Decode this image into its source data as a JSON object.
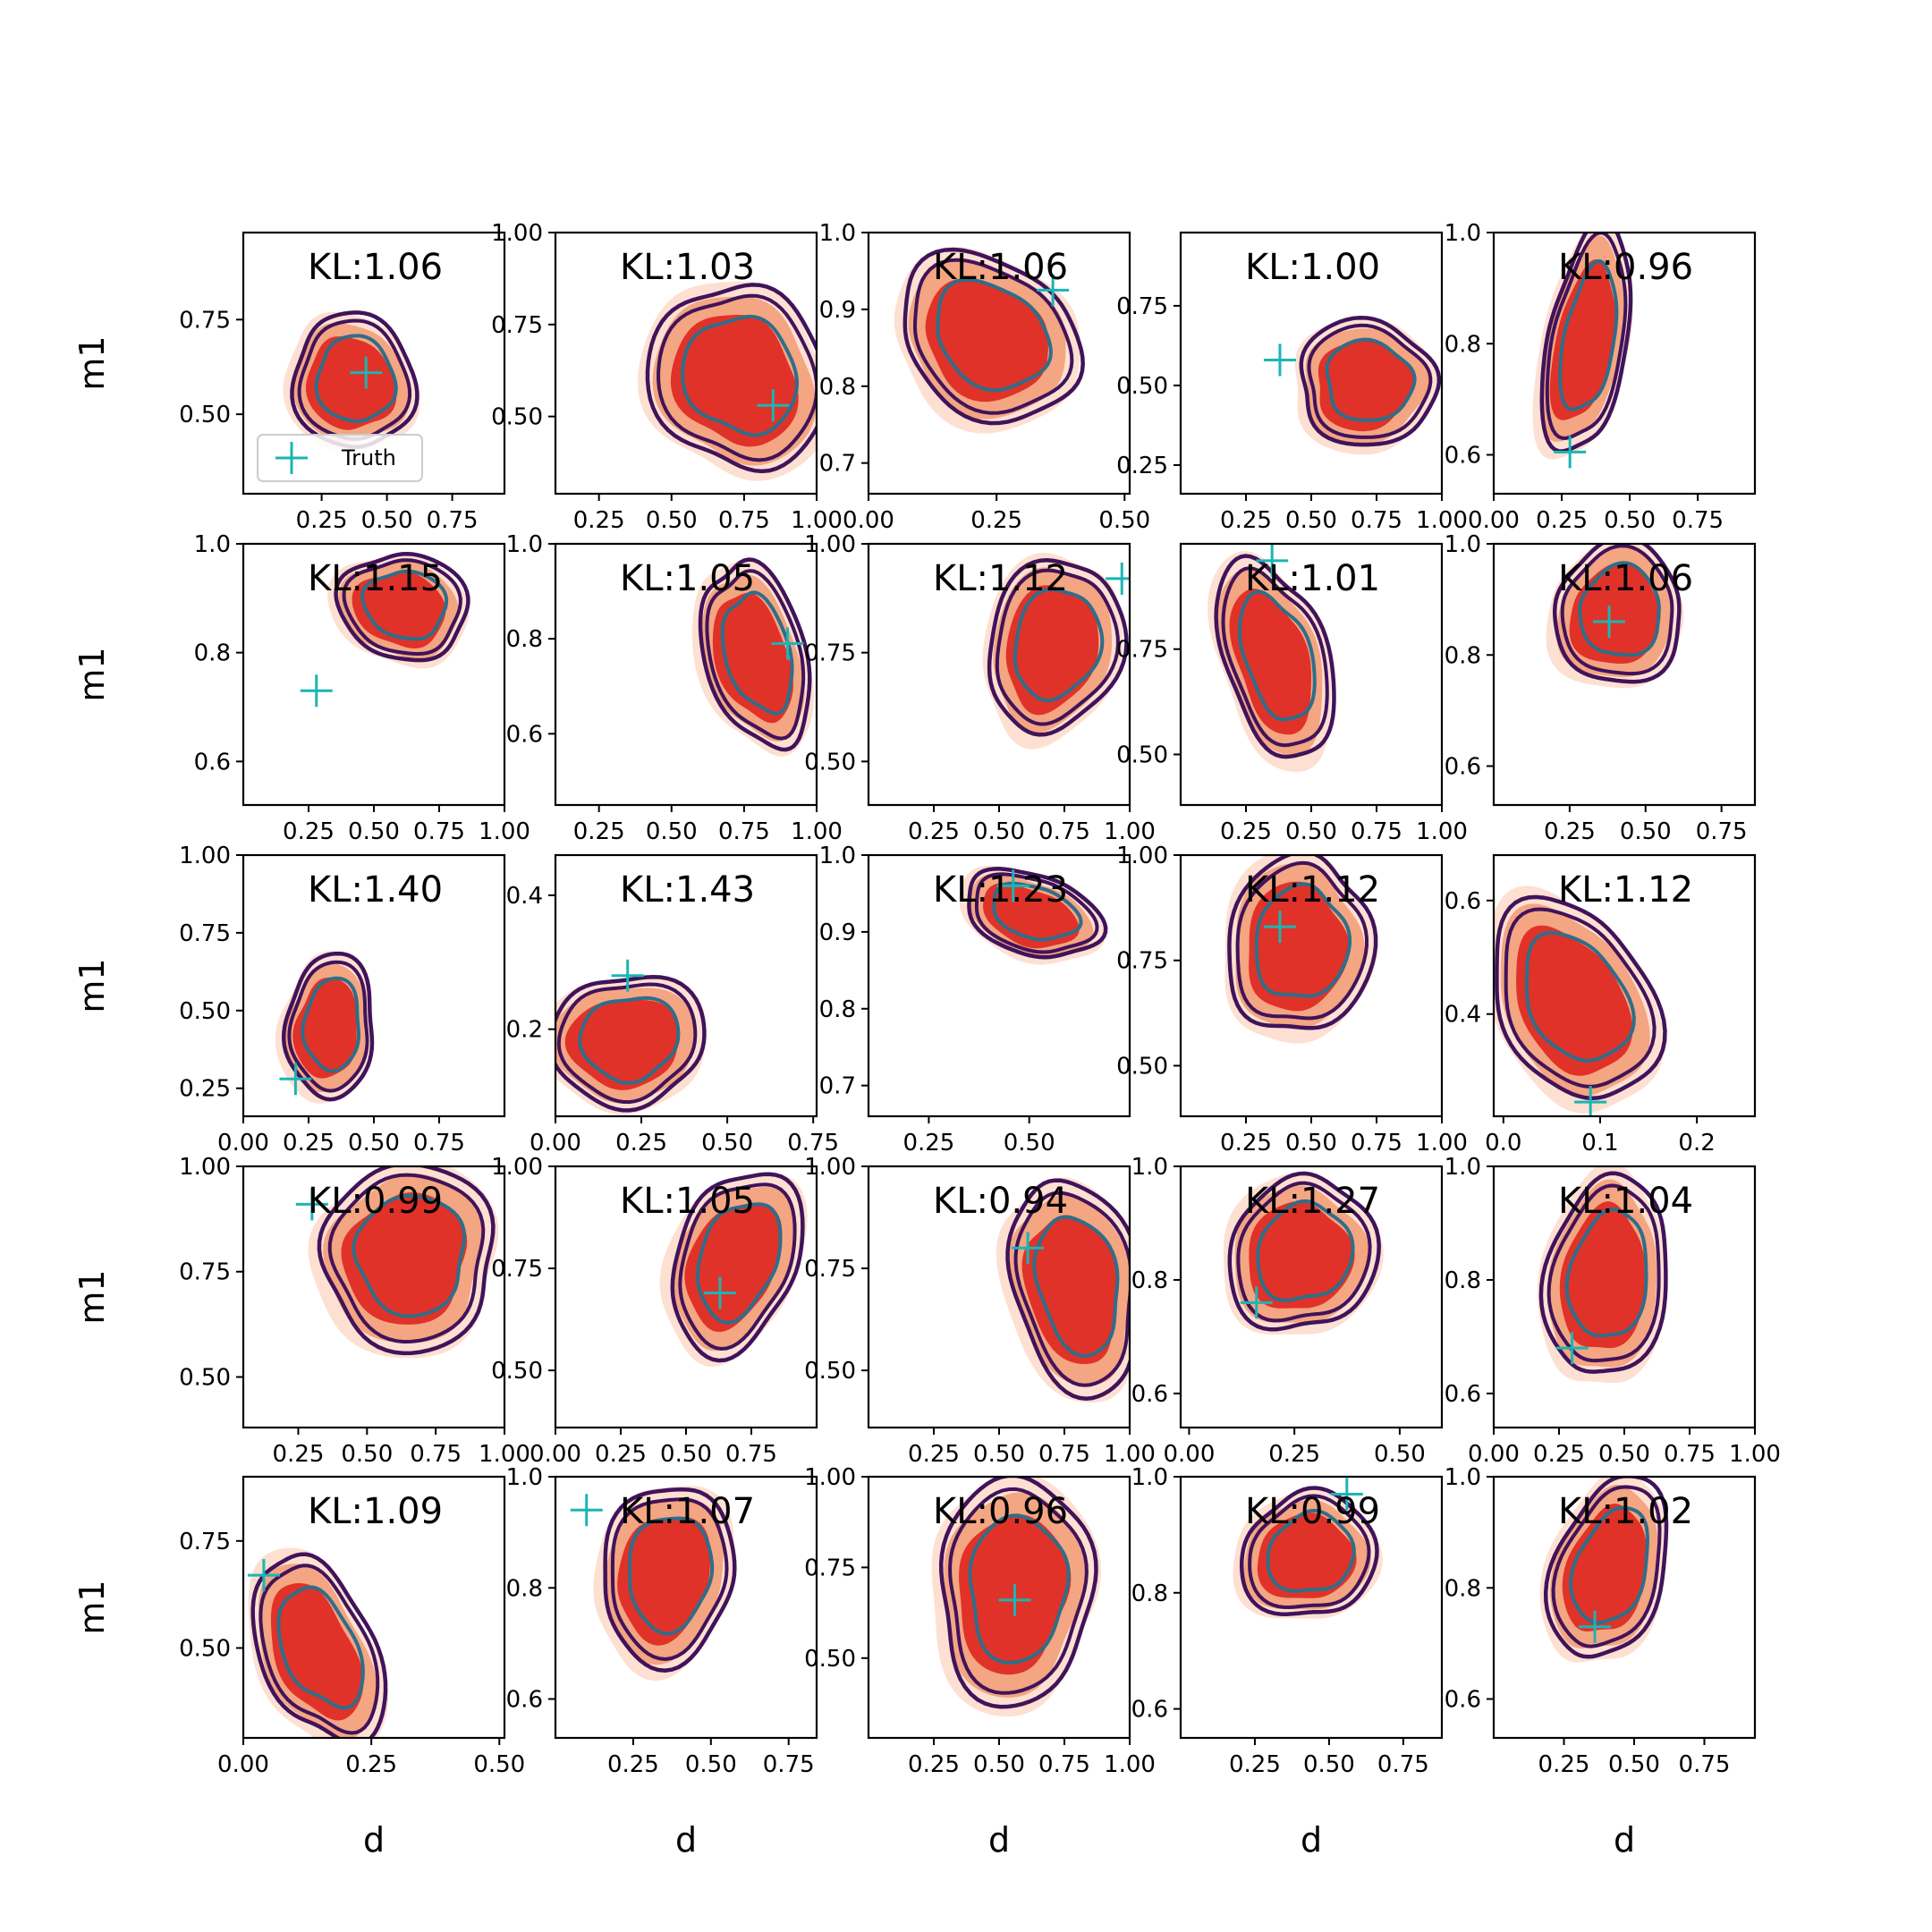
{
  "figure": {
    "x_label": "d",
    "y_label": "m1",
    "legend": {
      "label": "Truth",
      "placement": "lower-left",
      "panel": 0
    },
    "colors": {
      "fill_outer": "#fde0d2",
      "fill_mid": "#f4a582",
      "fill_inner": "#e03228",
      "contour_outer": "#40135a",
      "contour_inner": "#2e6e8a",
      "truth": "#1ab5b5",
      "frame": "#000000"
    },
    "contour_levels": [
      "outer",
      "middle",
      "inner"
    ],
    "grid": false
  },
  "chart_data": [
    {
      "type": "contour",
      "kl": "KL:1.06",
      "truth": [
        0.42,
        0.61
      ],
      "center": [
        0.36,
        0.58
      ],
      "spread": [
        0.2,
        0.17
      ],
      "tilt": -0.6,
      "xlim": [
        -0.05,
        0.95
      ],
      "ylim": [
        0.29,
        0.98
      ],
      "xticks": [
        "0.25",
        "0.50",
        "0.75"
      ],
      "xtick_values": [
        0.25,
        0.5,
        0.75
      ],
      "yticks": [
        "0.50",
        "0.75"
      ],
      "ytick_values": [
        0.5,
        0.75
      ]
    },
    {
      "type": "contour",
      "kl": "KL:1.03",
      "truth": [
        0.85,
        0.53
      ],
      "center": [
        0.72,
        0.6
      ],
      "spread": [
        0.26,
        0.24
      ],
      "tilt": -0.4,
      "xlim": [
        0.1,
        1.0
      ],
      "ylim": [
        0.29,
        1.0
      ],
      "xticks": [
        "0.25",
        "0.50",
        "0.75",
        "1.00"
      ],
      "xtick_values": [
        0.25,
        0.5,
        0.75,
        1.0
      ],
      "yticks": [
        "0.50",
        "0.75",
        "1.00"
      ],
      "ytick_values": [
        0.5,
        0.75,
        1.0
      ]
    },
    {
      "type": "contour",
      "kl": "KL:1.06",
      "truth": [
        0.36,
        0.925
      ],
      "center": [
        0.23,
        0.86
      ],
      "spread": [
        0.17,
        0.09
      ],
      "tilt": 0.7,
      "xlim": [
        0.0,
        0.51
      ],
      "ylim": [
        0.66,
        1.0
      ],
      "xticks": [
        "0.00",
        "0.25",
        "0.50"
      ],
      "xtick_values": [
        0.0,
        0.25,
        0.5
      ],
      "yticks": [
        "0.7",
        "0.8",
        "0.9",
        "1.0"
      ],
      "ytick_values": [
        0.7,
        0.8,
        0.9,
        1.0
      ]
    },
    {
      "type": "contour",
      "kl": "KL:1.00",
      "truth": [
        0.38,
        0.58
      ],
      "center": [
        0.7,
        0.5
      ],
      "spread": [
        0.25,
        0.17
      ],
      "tilt": 0.0,
      "xlim": [
        0.0,
        1.0
      ],
      "ylim": [
        0.16,
        0.98
      ],
      "xticks": [
        "0.25",
        "0.50",
        "0.75",
        "1.00"
      ],
      "xtick_values": [
        0.25,
        0.5,
        0.75,
        1.0
      ],
      "yticks": [
        "0.25",
        "0.50",
        "0.75"
      ],
      "ytick_values": [
        0.25,
        0.5,
        0.75
      ]
    },
    {
      "type": "contour",
      "kl": "KL:0.96",
      "truth": [
        0.28,
        0.605
      ],
      "center": [
        0.33,
        0.8
      ],
      "spread": [
        0.14,
        0.18
      ],
      "tilt": 0.25,
      "xlim": [
        0.0,
        0.96
      ],
      "ylim": [
        0.53,
        1.0
      ],
      "xticks": [
        "0.00",
        "0.25",
        "0.50",
        "0.75"
      ],
      "xtick_values": [
        0.0,
        0.25,
        0.5,
        0.75
      ],
      "yticks": [
        "0.6",
        "0.8",
        "1.0"
      ],
      "ytick_values": [
        0.6,
        0.8,
        1.0
      ]
    },
    {
      "type": "contour",
      "kl": "KL:1.15",
      "truth": [
        0.28,
        0.73
      ],
      "center": [
        0.6,
        0.88
      ],
      "spread": [
        0.22,
        0.09
      ],
      "tilt": 0.8,
      "xlim": [
        0.0,
        1.0
      ],
      "ylim": [
        0.52,
        1.0
      ],
      "xticks": [
        "0.25",
        "0.50",
        "0.75",
        "1.00"
      ],
      "xtick_values": [
        0.25,
        0.5,
        0.75,
        1.0
      ],
      "yticks": [
        "0.6",
        "0.8",
        "1.0"
      ],
      "ytick_values": [
        0.6,
        0.8,
        1.0
      ]
    },
    {
      "type": "contour",
      "kl": "KL:1.05",
      "truth": [
        0.9,
        0.79
      ],
      "center": [
        0.78,
        0.76
      ],
      "spread": [
        0.15,
        0.19
      ],
      "tilt": -0.5,
      "xlim": [
        0.1,
        1.0
      ],
      "ylim": [
        0.45,
        1.0
      ],
      "xticks": [
        "0.25",
        "0.50",
        "0.75",
        "1.00"
      ],
      "xtick_values": [
        0.25,
        0.5,
        0.75,
        1.0
      ],
      "yticks": [
        "0.6",
        "0.8",
        "1.0"
      ],
      "ytick_values": [
        0.6,
        0.8,
        1.0
      ]
    },
    {
      "type": "contour",
      "kl": "KL:1.12",
      "truth": [
        0.97,
        0.92
      ],
      "center": [
        0.7,
        0.76
      ],
      "spread": [
        0.22,
        0.19
      ],
      "tilt": 0.6,
      "xlim": [
        0.0,
        1.0
      ],
      "ylim": [
        0.4,
        1.0
      ],
      "xticks": [
        "0.25",
        "0.50",
        "0.75",
        "1.00"
      ],
      "xtick_values": [
        0.25,
        0.5,
        0.75,
        1.0
      ],
      "yticks": [
        "0.50",
        "0.75",
        "1.00"
      ],
      "ytick_values": [
        0.5,
        0.75,
        1.0
      ]
    },
    {
      "type": "contour",
      "kl": "KL:1.01",
      "truth": [
        0.35,
        0.96
      ],
      "center": [
        0.35,
        0.72
      ],
      "spread": [
        0.18,
        0.22
      ],
      "tilt": -0.4,
      "xlim": [
        0.0,
        1.0
      ],
      "ylim": [
        0.38,
        1.0
      ],
      "xticks": [
        "0.25",
        "0.50",
        "0.75",
        "1.00"
      ],
      "xtick_values": [
        0.25,
        0.5,
        0.75,
        1.0
      ],
      "yticks": [
        "0.50",
        "0.75"
      ],
      "ytick_values": [
        0.5,
        0.75
      ]
    },
    {
      "type": "contour",
      "kl": "KL:1.06",
      "truth": [
        0.38,
        0.86
      ],
      "center": [
        0.4,
        0.87
      ],
      "spread": [
        0.2,
        0.11
      ],
      "tilt": 0.5,
      "xlim": [
        0.0,
        0.86
      ],
      "ylim": [
        0.53,
        1.0
      ],
      "xticks": [
        "0.25",
        "0.50",
        "0.75"
      ],
      "xtick_values": [
        0.25,
        0.5,
        0.75
      ],
      "yticks": [
        "0.6",
        "0.8",
        "1.0"
      ],
      "ytick_values": [
        0.6,
        0.8,
        1.0
      ]
    },
    {
      "type": "contour",
      "kl": "KL:1.40",
      "truth": [
        0.2,
        0.28
      ],
      "center": [
        0.32,
        0.44
      ],
      "spread": [
        0.16,
        0.2
      ],
      "tilt": 0.0,
      "xlim": [
        0.0,
        1.0
      ],
      "ylim": [
        0.16,
        1.0
      ],
      "xticks": [
        "0.00",
        "0.25",
        "0.50",
        "0.75"
      ],
      "xtick_values": [
        0.0,
        0.25,
        0.5,
        0.75
      ],
      "yticks": [
        "0.25",
        "0.50",
        "0.75",
        "1.00"
      ],
      "ytick_values": [
        0.25,
        0.5,
        0.75,
        1.0
      ]
    },
    {
      "type": "contour",
      "kl": "KL:1.43",
      "truth": [
        0.21,
        0.28
      ],
      "center": [
        0.2,
        0.18
      ],
      "spread": [
        0.2,
        0.09
      ],
      "tilt": 0.3,
      "xlim": [
        0.0,
        0.76
      ],
      "ylim": [
        0.07,
        0.46
      ],
      "xticks": [
        "0.00",
        "0.25",
        "0.50",
        "0.75"
      ],
      "xtick_values": [
        0.0,
        0.25,
        0.5,
        0.75
      ],
      "yticks": [
        "0.2",
        "0.4"
      ],
      "ytick_values": [
        0.2,
        0.4
      ]
    },
    {
      "type": "contour",
      "kl": "KL:1.23",
      "truth": [
        0.46,
        0.96
      ],
      "center": [
        0.5,
        0.92
      ],
      "spread": [
        0.15,
        0.05
      ],
      "tilt": 0.6,
      "xlim": [
        0.1,
        0.75
      ],
      "ylim": [
        0.66,
        1.0
      ],
      "xticks": [
        "0.25",
        "0.50"
      ],
      "xtick_values": [
        0.25,
        0.5
      ],
      "yticks": [
        "0.7",
        "0.8",
        "0.9",
        "1.0"
      ],
      "ytick_values": [
        0.7,
        0.8,
        0.9,
        1.0
      ]
    },
    {
      "type": "contour",
      "kl": "KL:1.12",
      "truth": [
        0.38,
        0.83
      ],
      "center": [
        0.44,
        0.78
      ],
      "spread": [
        0.24,
        0.2
      ],
      "tilt": 0.4,
      "xlim": [
        0.0,
        1.0
      ],
      "ylim": [
        0.38,
        1.0
      ],
      "xticks": [
        "0.25",
        "0.50",
        "0.75",
        "1.00"
      ],
      "xtick_values": [
        0.25,
        0.5,
        0.75,
        1.0
      ],
      "yticks": [
        "0.50",
        "0.75",
        "1.00"
      ],
      "ytick_values": [
        0.5,
        0.75,
        1.0
      ]
    },
    {
      "type": "contour",
      "kl": "KL:1.12",
      "truth": [
        0.09,
        0.245
      ],
      "center": [
        0.07,
        0.42
      ],
      "spread": [
        0.07,
        0.17
      ],
      "tilt": -0.6,
      "xlim": [
        -0.01,
        0.26
      ],
      "ylim": [
        0.22,
        0.68
      ],
      "xticks": [
        "0.0",
        "0.1",
        "0.2"
      ],
      "xtick_values": [
        0.0,
        0.1,
        0.2
      ],
      "yticks": [
        "0.4",
        "0.6"
      ],
      "ytick_values": [
        0.4,
        0.6
      ]
    },
    {
      "type": "contour",
      "kl": "KL:0.99",
      "truth": [
        0.3,
        0.91
      ],
      "center": [
        0.64,
        0.78
      ],
      "spread": [
        0.3,
        0.19
      ],
      "tilt": 0.7,
      "xlim": [
        0.05,
        1.0
      ],
      "ylim": [
        0.38,
        1.0
      ],
      "xticks": [
        "0.25",
        "0.50",
        "0.75",
        "1.00"
      ],
      "xtick_values": [
        0.25,
        0.5,
        0.75,
        1.0
      ],
      "yticks": [
        "0.50",
        "0.75",
        "1.00"
      ],
      "ytick_values": [
        0.5,
        0.75,
        1.0
      ]
    },
    {
      "type": "contour",
      "kl": "KL:1.05",
      "truth": [
        0.63,
        0.69
      ],
      "center": [
        0.68,
        0.76
      ],
      "spread": [
        0.22,
        0.2
      ],
      "tilt": 0.5,
      "xlim": [
        0.0,
        1.0
      ],
      "ylim": [
        0.36,
        1.0
      ],
      "xticks": [
        "0.00",
        "0.25",
        "0.50",
        "0.75"
      ],
      "xtick_values": [
        0.0,
        0.25,
        0.5,
        0.75
      ],
      "yticks": [
        "0.50",
        "0.75",
        "1.00"
      ],
      "ytick_values": [
        0.5,
        0.75,
        1.0
      ]
    },
    {
      "type": "contour",
      "kl": "KL:0.94",
      "truth": [
        0.61,
        0.8
      ],
      "center": [
        0.78,
        0.7
      ],
      "spread": [
        0.22,
        0.24
      ],
      "tilt": -0.5,
      "xlim": [
        0.0,
        1.0
      ],
      "ylim": [
        0.36,
        1.0
      ],
      "xticks": [
        "0.25",
        "0.50",
        "0.75",
        "1.00"
      ],
      "xtick_values": [
        0.25,
        0.5,
        0.75,
        1.0
      ],
      "yticks": [
        "0.50",
        "0.75",
        "1.00"
      ],
      "ytick_values": [
        0.5,
        0.75,
        1.0
      ]
    },
    {
      "type": "contour",
      "kl": "KL:1.27",
      "truth": [
        0.16,
        0.76
      ],
      "center": [
        0.26,
        0.84
      ],
      "spread": [
        0.15,
        0.13
      ],
      "tilt": 0.3,
      "xlim": [
        -0.02,
        0.6
      ],
      "ylim": [
        0.54,
        1.0
      ],
      "xticks": [
        "0.00",
        "0.25",
        "0.50"
      ],
      "xtick_values": [
        0.0,
        0.25,
        0.5
      ],
      "yticks": [
        "0.6",
        "0.8",
        "1.0"
      ],
      "ytick_values": [
        0.6,
        0.8,
        1.0
      ]
    },
    {
      "type": "contour",
      "kl": "KL:1.04",
      "truth": [
        0.3,
        0.68
      ],
      "center": [
        0.42,
        0.8
      ],
      "spread": [
        0.2,
        0.17
      ],
      "tilt": 0.3,
      "xlim": [
        0.0,
        1.0
      ],
      "ylim": [
        0.54,
        1.0
      ],
      "xticks": [
        "0.00",
        "0.25",
        "0.50",
        "0.75",
        "1.00"
      ],
      "xtick_values": [
        0.0,
        0.25,
        0.5,
        0.75,
        1.0
      ],
      "yticks": [
        "0.6",
        "0.8",
        "1.0"
      ],
      "ytick_values": [
        0.6,
        0.8,
        1.0
      ]
    },
    {
      "type": "contour",
      "kl": "KL:1.09",
      "truth": [
        0.04,
        0.67
      ],
      "center": [
        0.14,
        0.49
      ],
      "spread": [
        0.1,
        0.21
      ],
      "tilt": -0.55,
      "xlim": [
        0.0,
        0.51
      ],
      "ylim": [
        0.29,
        0.9
      ],
      "xticks": [
        "0.00",
        "0.25",
        "0.50"
      ],
      "xtick_values": [
        0.0,
        0.25,
        0.5
      ],
      "yticks": [
        "0.50",
        "0.75"
      ],
      "ytick_values": [
        0.5,
        0.75
      ]
    },
    {
      "type": "contour",
      "kl": "KL:1.07",
      "truth": [
        0.1,
        0.94
      ],
      "center": [
        0.35,
        0.82
      ],
      "spread": [
        0.2,
        0.14
      ],
      "tilt": 0.4,
      "xlim": [
        0.0,
        0.84
      ],
      "ylim": [
        0.53,
        1.0
      ],
      "xticks": [
        "0.25",
        "0.50",
        "0.75"
      ],
      "xtick_values": [
        0.25,
        0.5,
        0.75
      ],
      "yticks": [
        "0.6",
        "0.8",
        "1.0"
      ],
      "ytick_values": [
        0.6,
        0.8,
        1.0
      ]
    },
    {
      "type": "contour",
      "kl": "KL:0.96",
      "truth": [
        0.56,
        0.66
      ],
      "center": [
        0.55,
        0.68
      ],
      "spread": [
        0.28,
        0.27
      ],
      "tilt": 0.0,
      "xlim": [
        0.0,
        1.0
      ],
      "ylim": [
        0.28,
        1.0
      ],
      "xticks": [
        "0.25",
        "0.50",
        "0.75",
        "1.00"
      ],
      "xtick_values": [
        0.25,
        0.5,
        0.75,
        1.0
      ],
      "yticks": [
        "0.50",
        "0.75",
        "1.00"
      ],
      "ytick_values": [
        0.5,
        0.75,
        1.0
      ]
    },
    {
      "type": "contour",
      "kl": "KL:0.99",
      "truth": [
        0.56,
        0.97
      ],
      "center": [
        0.42,
        0.86
      ],
      "spread": [
        0.2,
        0.1
      ],
      "tilt": 0.6,
      "xlim": [
        0.0,
        0.88
      ],
      "ylim": [
        0.55,
        1.0
      ],
      "xticks": [
        "0.25",
        "0.50",
        "0.75"
      ],
      "xtick_values": [
        0.25,
        0.5,
        0.75
      ],
      "yticks": [
        "0.6",
        "0.8",
        "1.0"
      ],
      "ytick_values": [
        0.6,
        0.8,
        1.0
      ]
    },
    {
      "type": "contour",
      "kl": "KL:1.02",
      "truth": [
        0.36,
        0.73
      ],
      "center": [
        0.4,
        0.83
      ],
      "spread": [
        0.17,
        0.16
      ],
      "tilt": 0.4,
      "xlim": [
        0.0,
        0.93
      ],
      "ylim": [
        0.53,
        1.0
      ],
      "xticks": [
        "0.25",
        "0.50",
        "0.75"
      ],
      "xtick_values": [
        0.25,
        0.5,
        0.75
      ],
      "yticks": [
        "0.6",
        "0.8",
        "1.0"
      ],
      "ytick_values": [
        0.6,
        0.8,
        1.0
      ]
    }
  ]
}
